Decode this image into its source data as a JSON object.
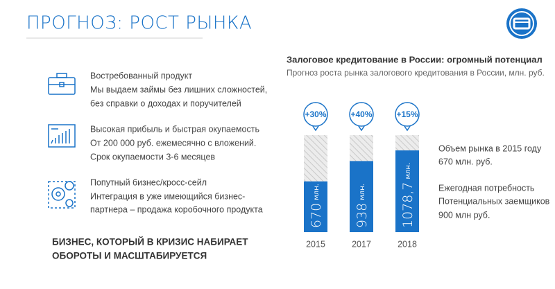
{
  "header": {
    "title": "ПРОГНОЗ: РОСТ РЫНКА"
  },
  "features": [
    {
      "title": "Востребованный продукт",
      "lines": [
        "Мы выдаем займы без лишних сложностей,",
        "без справки о доходах и поручителей"
      ]
    },
    {
      "title": "Высокая прибыль и быстрая окупаемость",
      "lines": [
        "От 200 000 руб. ежемесячно с вложений.",
        "Срок окупаемости 3-6 месяцев"
      ]
    },
    {
      "title": "Попутный бизнес/кросс-сейл",
      "lines": [
        "Интеграция в уже имеющийся бизнес-",
        "партнера – продажа коробочного продукта"
      ]
    }
  ],
  "slogan": [
    "БИЗНЕС, КОТОРЫЙ В КРИЗИС НАБИРАЕТ",
    "ОБОРОТЫ И МАСШТАБИРУЕТСЯ"
  ],
  "notes": [
    "Объем рынка в 2015 году",
    "670 млн. руб.",
    "Ежегодная потребность",
    "Потенциальных заемщиков",
    "900 млн руб."
  ],
  "chart_data": {
    "type": "bar",
    "title": "Залоговое кредитование в России: огромный потенциал",
    "subtitle": "Прогноз роста рынка залогового кредитования в России, млн. руб.",
    "categories": [
      "2015",
      "2017",
      "2018"
    ],
    "values": [
      670,
      938,
      1078.7
    ],
    "value_labels": [
      "670",
      "938",
      "1078,7"
    ],
    "unit": "млн.",
    "growth_labels": [
      "+30%",
      "+40%",
      "+15%"
    ],
    "color": "#1a73c8"
  }
}
